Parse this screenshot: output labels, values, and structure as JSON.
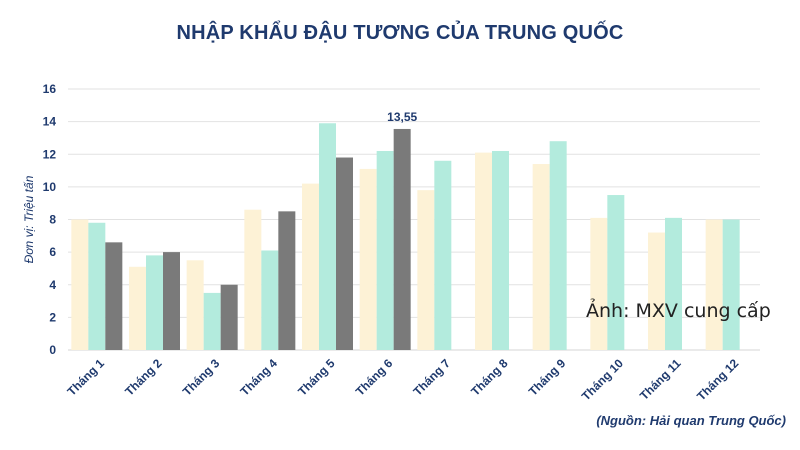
{
  "chart_data": {
    "type": "bar",
    "title": "NHẬP KHẨU ĐẬU TƯƠNG CỦA TRUNG QUỐC",
    "ylabel": "Đơn vị: Triệu tấn",
    "xlabel": "",
    "ylim": [
      0,
      16
    ],
    "yticks": [
      0,
      2,
      4,
      6,
      8,
      10,
      12,
      14,
      16
    ],
    "grid": true,
    "categories": [
      "Tháng 1",
      "Tháng 2",
      "Tháng 3",
      "Tháng 4",
      "Tháng 5",
      "Tháng 6",
      "Tháng 7",
      "Tháng 8",
      "Tháng 9",
      "Tháng 10",
      "Tháng 11",
      "Tháng 12"
    ],
    "series": [
      {
        "color": "#fdf2d6",
        "values": [
          8.0,
          5.1,
          5.5,
          8.6,
          10.2,
          11.1,
          9.8,
          12.1,
          11.4,
          8.1,
          7.2,
          8.0
        ]
      },
      {
        "color": "#b3ebdd",
        "values": [
          7.8,
          5.8,
          3.5,
          6.1,
          13.9,
          12.2,
          11.6,
          12.2,
          12.8,
          9.5,
          8.1,
          8.0
        ]
      },
      {
        "color": "#7a7a7a",
        "values": [
          6.6,
          6.0,
          4.0,
          8.5,
          11.8,
          13.55,
          null,
          null,
          null,
          null,
          null,
          null
        ]
      }
    ],
    "data_labels": [
      {
        "series": 2,
        "category": "Tháng 6",
        "text": "13,55"
      }
    ]
  },
  "watermark": "Ảnh: MXV cung cấp",
  "source": "(Nguồn: Hải quan Trung Quốc)"
}
